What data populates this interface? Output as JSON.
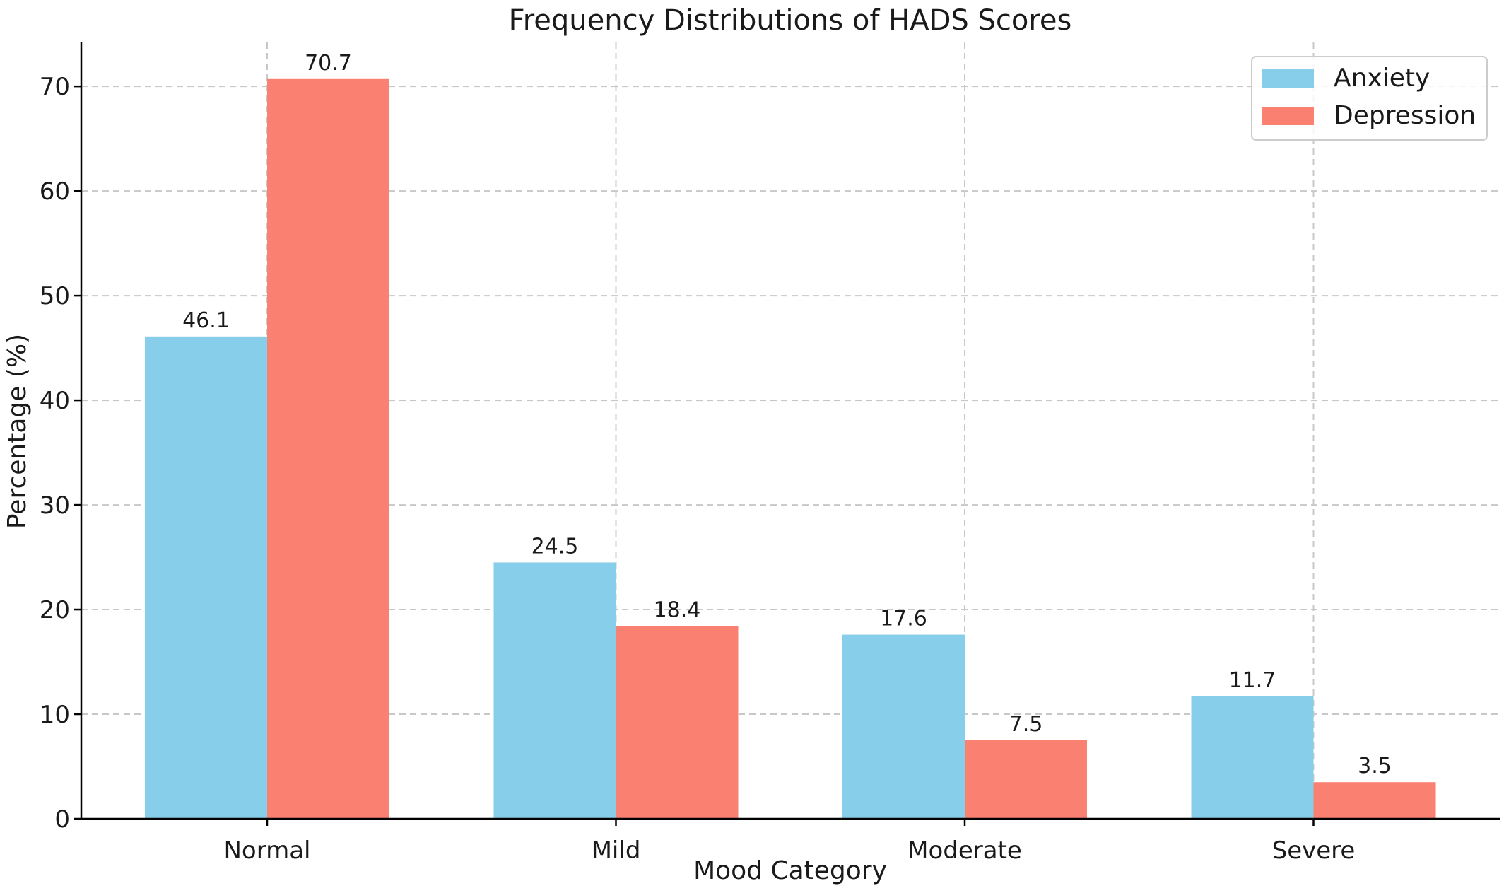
{
  "chart_data": {
    "type": "bar",
    "title": "Frequency Distributions of HADS Scores",
    "xlabel": "Mood Category",
    "ylabel": "Percentage (%)",
    "categories": [
      "Normal",
      "Mild",
      "Moderate",
      "Severe"
    ],
    "series": [
      {
        "name": "Anxiety",
        "color": "#87CEEB",
        "values": [
          46.1,
          24.5,
          17.6,
          11.7
        ],
        "labels": [
          "46.1",
          "24.5",
          "17.6",
          "11.7"
        ]
      },
      {
        "name": "Depression",
        "color": "#FA8072",
        "values": [
          70.7,
          18.4,
          7.5,
          3.5
        ],
        "labels": [
          "70.7",
          "18.4",
          "7.5",
          "3.5"
        ]
      }
    ],
    "yticks": [
      "0",
      "10",
      "20",
      "30",
      "40",
      "50",
      "60",
      "70"
    ],
    "ylim": [
      0,
      74.2
    ],
    "grid": true,
    "legend": "top-right"
  }
}
